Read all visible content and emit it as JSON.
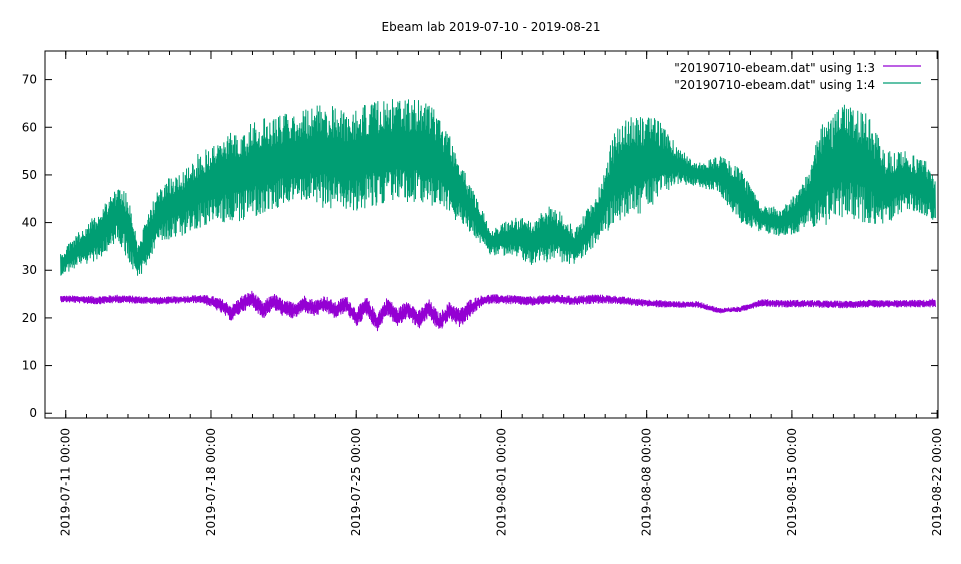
{
  "chart_data": {
    "type": "line",
    "title": "Ebeam lab 2019-07-10 - 2019-08-21",
    "xlabel": "",
    "ylabel": "",
    "x_axis": {
      "kind": "datetime",
      "range": [
        "2019-07-10 00:00",
        "2019-08-22 01:00"
      ],
      "tick_labels": [
        "2019-07-11 00:00",
        "2019-07-18 00:00",
        "2019-07-25 00:00",
        "2019-08-01 00:00",
        "2019-08-08 00:00",
        "2019-08-15 00:00",
        "2019-08-22 00:00"
      ],
      "tick_dates": [
        "2019-07-11",
        "2019-07-18",
        "2019-07-25",
        "2019-08-01",
        "2019-08-08",
        "2019-08-15",
        "2019-08-22"
      ]
    },
    "y_axis": {
      "range": [
        -1,
        76
      ],
      "ticks": [
        0,
        10,
        20,
        30,
        40,
        50,
        60,
        70
      ],
      "tick_labels": [
        "0",
        "10",
        "20",
        "30",
        "40",
        "50",
        "60",
        "70"
      ]
    },
    "grid": false,
    "legend_position": "top-right",
    "series": [
      {
        "name": "\"20190710-ebeam.dat\" using 1:3",
        "color": "#9400d3",
        "style": "dense",
        "x": [
          "2019-07-10 18:00",
          "2019-07-11 12:00",
          "2019-07-12 12:00",
          "2019-07-13 12:00",
          "2019-07-14 12:00",
          "2019-07-15 12:00",
          "2019-07-16 12:00",
          "2019-07-17 12:00",
          "2019-07-18 00:00",
          "2019-07-18 12:00",
          "2019-07-19 00:00",
          "2019-07-19 12:00",
          "2019-07-20 00:00",
          "2019-07-20 12:00",
          "2019-07-21 00:00",
          "2019-07-21 12:00",
          "2019-07-22 00:00",
          "2019-07-22 12:00",
          "2019-07-23 00:00",
          "2019-07-23 12:00",
          "2019-07-24 00:00",
          "2019-07-24 12:00",
          "2019-07-25 00:00",
          "2019-07-25 12:00",
          "2019-07-26 00:00",
          "2019-07-26 12:00",
          "2019-07-27 00:00",
          "2019-07-27 12:00",
          "2019-07-28 00:00",
          "2019-07-28 12:00",
          "2019-07-29 00:00",
          "2019-07-29 12:00",
          "2019-07-30 00:00",
          "2019-07-30 12:00",
          "2019-07-31 00:00",
          "2019-07-31 12:00",
          "2019-08-01 12:00",
          "2019-08-02 12:00",
          "2019-08-03 12:00",
          "2019-08-04 12:00",
          "2019-08-05 12:00",
          "2019-08-06 12:00",
          "2019-08-07 12:00",
          "2019-08-08 12:00",
          "2019-08-09 12:00",
          "2019-08-10 12:00",
          "2019-08-11 12:00",
          "2019-08-12 12:00",
          "2019-08-13 12:00",
          "2019-08-14 12:00",
          "2019-08-15 12:00",
          "2019-08-16 12:00",
          "2019-08-17 12:00",
          "2019-08-18 12:00",
          "2019-08-19 12:00",
          "2019-08-20 12:00",
          "2019-08-21 12:00",
          "2019-08-21 22:00"
        ],
        "y": [
          24.0,
          23.9,
          23.7,
          24.0,
          23.8,
          23.6,
          23.8,
          24.0,
          23.5,
          22.5,
          21.0,
          23.0,
          24.0,
          21.5,
          23.5,
          22.0,
          21.5,
          23.0,
          22.0,
          23.0,
          21.5,
          23.0,
          20.0,
          22.5,
          19.0,
          22.5,
          20.0,
          22.0,
          19.5,
          22.0,
          19.0,
          21.5,
          20.0,
          22.0,
          23.5,
          24.0,
          23.8,
          23.5,
          24.0,
          23.6,
          24.0,
          23.8,
          23.3,
          23.0,
          22.8,
          22.8,
          21.5,
          21.8,
          23.2,
          23.0,
          23.0,
          22.9,
          22.8,
          23.0,
          22.9,
          23.0,
          23.0,
          23.2
        ],
        "band": [
          0.7,
          0.8,
          0.9,
          0.9,
          0.8,
          0.8,
          0.8,
          0.9,
          1.2,
          1.6,
          1.8,
          1.8,
          1.8,
          1.8,
          1.8,
          1.8,
          1.8,
          1.8,
          1.8,
          1.8,
          1.8,
          1.8,
          2.0,
          2.0,
          2.0,
          2.0,
          2.0,
          2.0,
          2.0,
          2.0,
          2.0,
          2.0,
          2.0,
          2.0,
          1.2,
          1.0,
          1.0,
          1.0,
          1.0,
          1.0,
          1.0,
          0.9,
          0.8,
          0.8,
          0.7,
          0.7,
          0.6,
          0.6,
          0.8,
          0.8,
          0.8,
          0.8,
          0.8,
          0.8,
          0.8,
          0.8,
          0.8,
          1.0
        ]
      },
      {
        "name": "\"20190710-ebeam.dat\" using 1:4",
        "color": "#009e73",
        "style": "dense",
        "x": [
          "2019-07-10 18:00",
          "2019-07-11 12:00",
          "2019-07-12 12:00",
          "2019-07-13 12:00",
          "2019-07-14 00:00",
          "2019-07-14 12:00",
          "2019-07-15 12:00",
          "2019-07-16 12:00",
          "2019-07-17 12:00",
          "2019-07-18 12:00",
          "2019-07-19 12:00",
          "2019-07-20 12:00",
          "2019-07-21 12:00",
          "2019-07-22 12:00",
          "2019-07-23 12:00",
          "2019-07-24 12:00",
          "2019-07-25 12:00",
          "2019-07-26 12:00",
          "2019-07-27 12:00",
          "2019-07-28 12:00",
          "2019-07-29 12:00",
          "2019-07-30 12:00",
          "2019-07-31 12:00",
          "2019-08-01 12:00",
          "2019-08-02 12:00",
          "2019-08-03 12:00",
          "2019-08-04 12:00",
          "2019-08-05 12:00",
          "2019-08-06 12:00",
          "2019-08-07 12:00",
          "2019-08-08 12:00",
          "2019-08-09 12:00",
          "2019-08-10 12:00",
          "2019-08-11 12:00",
          "2019-08-12 12:00",
          "2019-08-13 12:00",
          "2019-08-14 12:00",
          "2019-08-15 12:00",
          "2019-08-16 12:00",
          "2019-08-17 12:00",
          "2019-08-18 12:00",
          "2019-08-19 12:00",
          "2019-08-20 12:00",
          "2019-08-21 12:00",
          "2019-08-21 22:00"
        ],
        "y": [
          31.0,
          34.0,
          37.0,
          42.0,
          39.0,
          32.0,
          42.0,
          44.0,
          47.0,
          49.0,
          50.0,
          52.0,
          53.0,
          54.0,
          54.0,
          53.0,
          54.0,
          55.0,
          55.0,
          55.0,
          50.0,
          43.0,
          36.0,
          37.0,
          36.0,
          38.0,
          35.0,
          40.0,
          50.0,
          52.0,
          53.0,
          52.0,
          50.0,
          50.0,
          46.0,
          41.0,
          40.0,
          43.0,
          50.0,
          53.0,
          52.0,
          47.0,
          49.0,
          47.0,
          45.0
        ],
        "band": [
          2.5,
          3.5,
          5.0,
          6.0,
          7.0,
          4.0,
          6.0,
          7.0,
          8.0,
          9.0,
          10.0,
          10.0,
          10.0,
          10.0,
          11.0,
          11.0,
          11.0,
          11.0,
          11.0,
          11.0,
          9.0,
          5.0,
          3.0,
          4.0,
          5.0,
          6.0,
          4.0,
          5.0,
          10.0,
          11.0,
          9.0,
          4.0,
          2.5,
          4.0,
          6.0,
          3.0,
          3.0,
          5.0,
          11.0,
          12.0,
          12.0,
          8.0,
          6.0,
          6.0,
          5.0
        ]
      }
    ]
  }
}
